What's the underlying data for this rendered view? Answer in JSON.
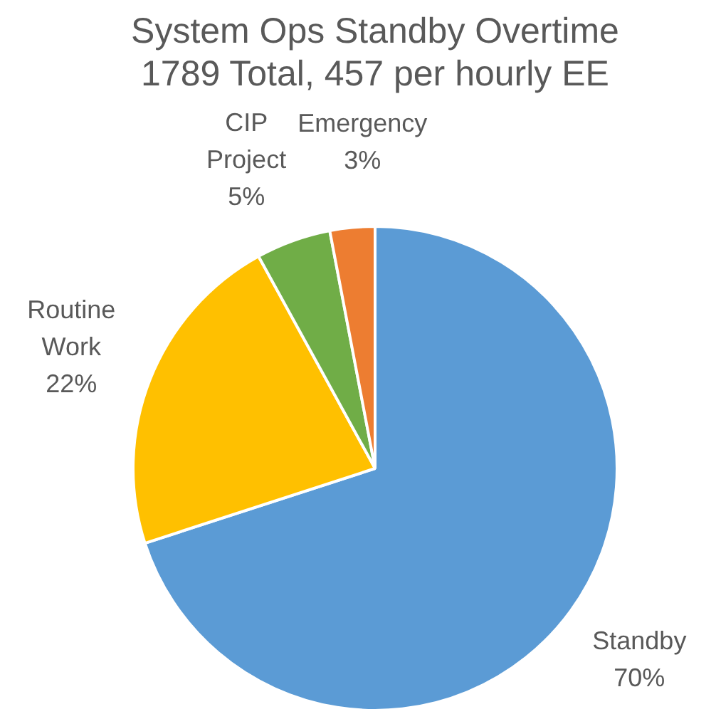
{
  "chart_data": {
    "type": "pie",
    "title": "System Ops Standby Overtime",
    "subtitle": "1789 Total, 457 per hourly EE",
    "categories": [
      "Standby",
      "Routine Work",
      "CIP Project",
      "Emergency"
    ],
    "values": [
      70,
      22,
      5,
      3
    ],
    "colors": [
      "#5b9bd5",
      "#ffc000",
      "#70ad47",
      "#ed7d31"
    ],
    "value_labels": [
      "70%",
      "22%",
      "5%",
      "3%"
    ],
    "legend": false
  }
}
